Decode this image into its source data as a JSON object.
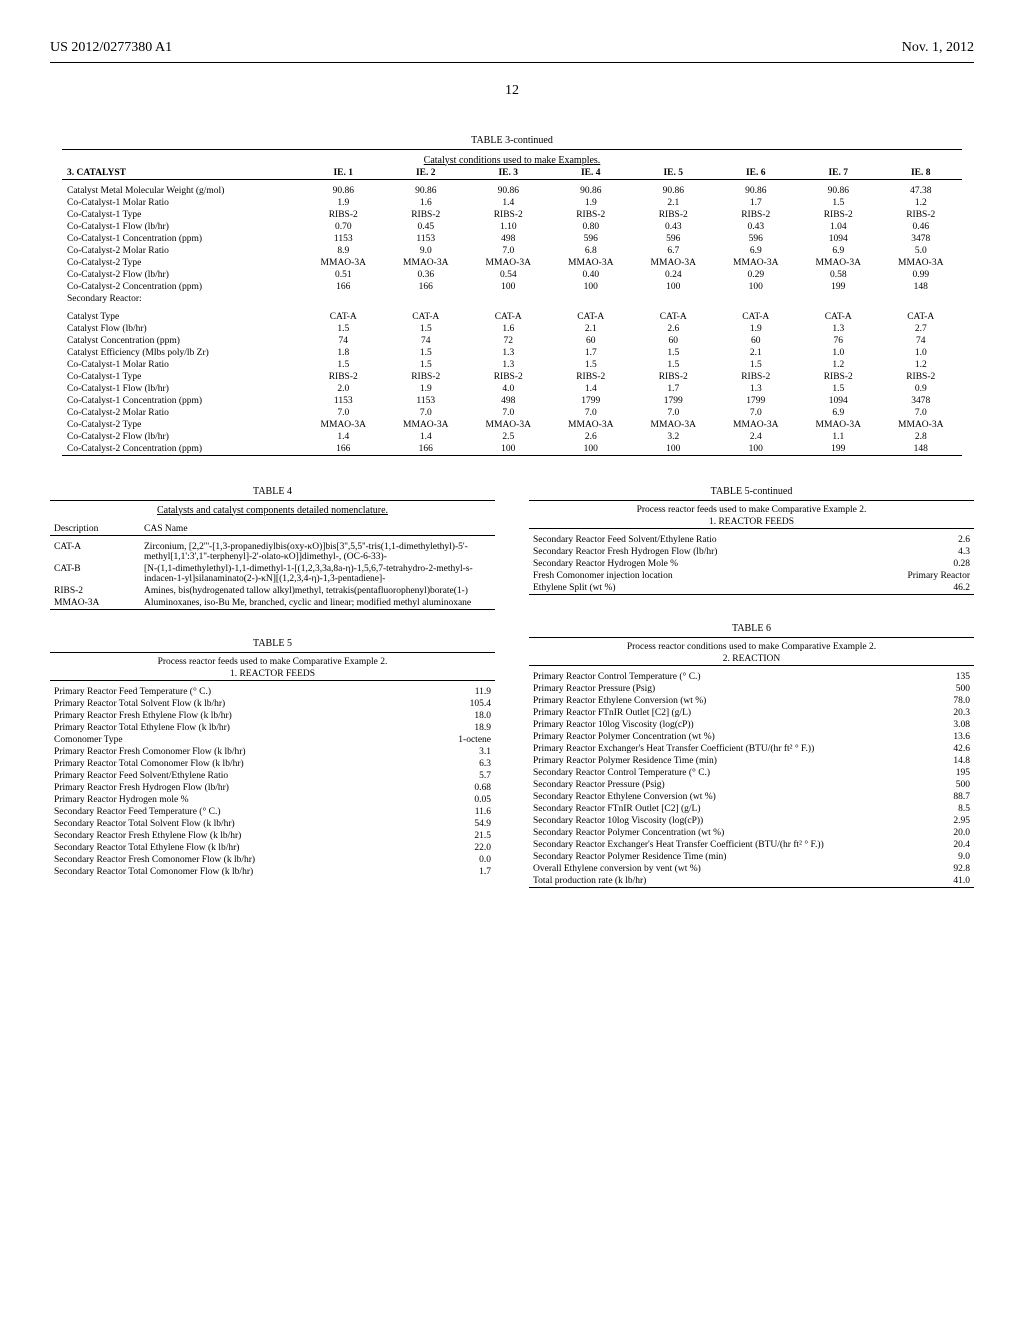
{
  "header": {
    "patent_id": "US 2012/0277380 A1",
    "date": "Nov. 1, 2012",
    "page_number": "12"
  },
  "table3": {
    "title": "TABLE 3-continued",
    "caption": "Catalyst conditions used to make Examples.",
    "section": "3. CATALYST",
    "cols": [
      "IE. 1",
      "IE. 2",
      "IE. 3",
      "IE. 4",
      "IE. 5",
      "IE. 6",
      "IE. 7",
      "IE. 8"
    ],
    "rows1": [
      {
        "l": "Catalyst Metal Molecular Weight (g/mol)",
        "v": [
          "90.86",
          "90.86",
          "90.86",
          "90.86",
          "90.86",
          "90.86",
          "90.86",
          "47.38"
        ]
      },
      {
        "l": "Co-Catalyst-1 Molar Ratio",
        "v": [
          "1.9",
          "1.6",
          "1.4",
          "1.9",
          "2.1",
          "1.7",
          "1.5",
          "1.2"
        ]
      },
      {
        "l": "Co-Catalyst-1 Type",
        "v": [
          "RIBS-2",
          "RIBS-2",
          "RIBS-2",
          "RIBS-2",
          "RIBS-2",
          "RIBS-2",
          "RIBS-2",
          "RIBS-2"
        ]
      },
      {
        "l": "Co-Catalyst-1 Flow (lb/hr)",
        "v": [
          "0.70",
          "0.45",
          "1.10",
          "0.80",
          "0.43",
          "0.43",
          "1.04",
          "0.46"
        ]
      },
      {
        "l": "Co-Catalyst-1 Concentration (ppm)",
        "v": [
          "1153",
          "1153",
          "498",
          "596",
          "596",
          "596",
          "1094",
          "3478"
        ]
      },
      {
        "l": "Co-Catalyst-2 Molar Ratio",
        "v": [
          "8.9",
          "9.0",
          "7.0",
          "6.8",
          "6.7",
          "6.9",
          "6.9",
          "5.0"
        ]
      },
      {
        "l": "Co-Catalyst-2 Type",
        "v": [
          "MMAO-3A",
          "MMAO-3A",
          "MMAO-3A",
          "MMAO-3A",
          "MMAO-3A",
          "MMAO-3A",
          "MMAO-3A",
          "MMAO-3A"
        ]
      },
      {
        "l": "Co-Catalyst-2 Flow (lb/hr)",
        "v": [
          "0.51",
          "0.36",
          "0.54",
          "0.40",
          "0.24",
          "0.29",
          "0.58",
          "0.99"
        ]
      },
      {
        "l": "Co-Catalyst-2 Concentration (ppm)",
        "v": [
          "166",
          "166",
          "100",
          "100",
          "100",
          "100",
          "199",
          "148"
        ]
      }
    ],
    "secondary_label": "Secondary Reactor:",
    "rows2": [
      {
        "l": "Catalyst Type",
        "v": [
          "CAT-A",
          "CAT-A",
          "CAT-A",
          "CAT-A",
          "CAT-A",
          "CAT-A",
          "CAT-A",
          "CAT-A"
        ]
      },
      {
        "l": "Catalyst Flow (lb/hr)",
        "v": [
          "1.5",
          "1.5",
          "1.6",
          "2.1",
          "2.6",
          "1.9",
          "1.3",
          "2.7"
        ]
      },
      {
        "l": "Catalyst Concentration (ppm)",
        "v": [
          "74",
          "74",
          "72",
          "60",
          "60",
          "60",
          "76",
          "74"
        ]
      },
      {
        "l": "Catalyst Efficiency (Mlbs poly/lb Zr)",
        "v": [
          "1.8",
          "1.5",
          "1.3",
          "1.7",
          "1.5",
          "2.1",
          "1.0",
          "1.0"
        ]
      },
      {
        "l": "Co-Catalyst-1 Molar Ratio",
        "v": [
          "1.5",
          "1.5",
          "1.3",
          "1.5",
          "1.5",
          "1.5",
          "1.2",
          "1.2"
        ]
      },
      {
        "l": "Co-Catalyst-1 Type",
        "v": [
          "RIBS-2",
          "RIBS-2",
          "RIBS-2",
          "RIBS-2",
          "RIBS-2",
          "RIBS-2",
          "RIBS-2",
          "RIBS-2"
        ]
      },
      {
        "l": "Co-Catalyst-1 Flow (lb/hr)",
        "v": [
          "2.0",
          "1.9",
          "4.0",
          "1.4",
          "1.7",
          "1.3",
          "1.5",
          "0.9"
        ]
      },
      {
        "l": "Co-Catalyst-1 Concentration (ppm)",
        "v": [
          "1153",
          "1153",
          "498",
          "1799",
          "1799",
          "1799",
          "1094",
          "3478"
        ]
      },
      {
        "l": "Co-Catalyst-2 Molar Ratio",
        "v": [
          "7.0",
          "7.0",
          "7.0",
          "7.0",
          "7.0",
          "7.0",
          "6.9",
          "7.0"
        ]
      },
      {
        "l": "Co-Catalyst-2 Type",
        "v": [
          "MMAO-3A",
          "MMAO-3A",
          "MMAO-3A",
          "MMAO-3A",
          "MMAO-3A",
          "MMAO-3A",
          "MMAO-3A",
          "MMAO-3A"
        ]
      },
      {
        "l": "Co-Catalyst-2 Flow (lb/hr)",
        "v": [
          "1.4",
          "1.4",
          "2.5",
          "2.6",
          "3.2",
          "2.4",
          "1.1",
          "2.8"
        ]
      },
      {
        "l": "Co-Catalyst-2 Concentration (ppm)",
        "v": [
          "166",
          "166",
          "100",
          "100",
          "100",
          "100",
          "199",
          "148"
        ]
      }
    ]
  },
  "table4": {
    "title": "TABLE 4",
    "caption": "Catalysts and catalyst components detailed nomenclature.",
    "cols": [
      "Description",
      "CAS Name"
    ],
    "rows": [
      {
        "d": "CAT-A",
        "n": "Zirconium, [2,2'''-[1,3-propanediylbis(oxy-κO)]bis[3'',5,5''-tris(1,1-dimethylethyl)-5'-methyl[1,1':3',1''-terphenyl]-2'-olato-κO]]dimethyl-, (OC-6-33)-"
      },
      {
        "d": "CAT-B",
        "n": "[N-(1,1-dimethylethyl)-1,1-dimethyl-1-[(1,2,3,3a,8a-η)-1,5,6,7-tetrahydro-2-methyl-s-indacen-1-yl]silanaminato(2-)-κN][(1,2,3,4-η)-1,3-pentadiene]-"
      },
      {
        "d": "RIBS-2",
        "n": "Amines, bis(hydrogenated tallow alkyl)methyl, tetrakis(pentafluorophenyl)borate(1-)"
      },
      {
        "d": "MMAO-3A",
        "n": "Aluminoxanes, iso-Bu Me, branched, cyclic and linear; modified methyl aluminoxane"
      }
    ]
  },
  "table5": {
    "title": "TABLE 5",
    "caption": "Process reactor feeds used to make Comparative Example 2.",
    "section": "1. REACTOR FEEDS",
    "rows": [
      {
        "l": "Primary Reactor Feed Temperature (° C.)",
        "v": "11.9"
      },
      {
        "l": "Primary Reactor Total Solvent Flow (k lb/hr)",
        "v": "105.4"
      },
      {
        "l": "Primary Reactor Fresh Ethylene Flow (k lb/hr)",
        "v": "18.0"
      },
      {
        "l": "Primary Reactor Total Ethylene Flow (k lb/hr)",
        "v": "18.9"
      },
      {
        "l": "Comonomer Type",
        "v": "1-octene"
      },
      {
        "l": "Primary Reactor Fresh Comonomer Flow (k lb/hr)",
        "v": "3.1"
      },
      {
        "l": "Primary Reactor Total Comonomer Flow (k lb/hr)",
        "v": "6.3"
      },
      {
        "l": "Primary Reactor Feed Solvent/Ethylene Ratio",
        "v": "5.7"
      },
      {
        "l": "Primary Reactor Fresh Hydrogen Flow (lb/hr)",
        "v": "0.68"
      },
      {
        "l": "Primary Reactor Hydrogen mole %",
        "v": "0.05"
      },
      {
        "l": "Secondary Reactor Feed Temperature (° C.)",
        "v": "11.6"
      },
      {
        "l": "Secondary Reactor Total Solvent Flow (k lb/hr)",
        "v": "54.9"
      },
      {
        "l": "Secondary Reactor Fresh Ethylene Flow (k lb/hr)",
        "v": "21.5"
      },
      {
        "l": "Secondary Reactor Total Ethylene Flow (k lb/hr)",
        "v": "22.0"
      },
      {
        "l": "Secondary Reactor Fresh Comonomer Flow (k lb/hr)",
        "v": "0.0"
      },
      {
        "l": "Secondary Reactor Total Comonomer Flow (k lb/hr)",
        "v": "1.7"
      }
    ]
  },
  "table5c": {
    "title": "TABLE 5-continued",
    "caption": "Process reactor feeds used to make Comparative Example 2.",
    "section": "1. REACTOR FEEDS",
    "rows": [
      {
        "l": "Secondary Reactor Feed Solvent/Ethylene Ratio",
        "v": "2.6"
      },
      {
        "l": "Secondary Reactor Fresh Hydrogen Flow (lb/hr)",
        "v": "4.3"
      },
      {
        "l": "Secondary Reactor Hydrogen Mole %",
        "v": "0.28"
      },
      {
        "l": "Fresh Comonomer injection location",
        "v": "Primary Reactor"
      },
      {
        "l": "Ethylene Split (wt %)",
        "v": "46.2"
      }
    ]
  },
  "table6": {
    "title": "TABLE 6",
    "caption": "Process reactor conditions used to make Comparative Example 2.",
    "section": "2. REACTION",
    "rows": [
      {
        "l": "Primary Reactor Control Temperature (° C.)",
        "v": "135"
      },
      {
        "l": "Primary Reactor Pressure (Psig)",
        "v": "500"
      },
      {
        "l": "Primary Reactor Ethylene Conversion (wt %)",
        "v": "78.0"
      },
      {
        "l": "Primary Reactor FTnIR Outlet [C2] (g/L)",
        "v": "20.3"
      },
      {
        "l": "Primary Reactor 10log Viscosity (log(cP))",
        "v": "3.08"
      },
      {
        "l": "Primary Reactor Polymer Concentration (wt %)",
        "v": "13.6"
      },
      {
        "l": "Primary Reactor Exchanger's Heat Transfer Coefficient (BTU/(hr ft² ° F.))",
        "v": "42.6"
      },
      {
        "l": "Primary Reactor Polymer Residence Time (min)",
        "v": "14.8"
      },
      {
        "l": "Secondary Reactor Control Temperature (° C.)",
        "v": "195"
      },
      {
        "l": "Secondary Reactor Pressure (Psig)",
        "v": "500"
      },
      {
        "l": "Secondary Reactor Ethylene Conversion (wt %)",
        "v": "88.7"
      },
      {
        "l": "Secondary Reactor FTnIR Outlet [C2] (g/L)",
        "v": "8.5"
      },
      {
        "l": "Secondary Reactor 10log Viscosity (log(cP))",
        "v": "2.95"
      },
      {
        "l": "Secondary Reactor Polymer Concentration (wt %)",
        "v": "20.0"
      },
      {
        "l": "Secondary Reactor Exchanger's Heat Transfer Coefficient (BTU/(hr ft² ° F.))",
        "v": "20.4"
      },
      {
        "l": "Secondary Reactor Polymer Residence Time (min)",
        "v": "9.0"
      },
      {
        "l": "Overall Ethylene conversion by vent (wt %)",
        "v": "92.8"
      },
      {
        "l": "Total production rate (k lb/hr)",
        "v": "41.0"
      }
    ]
  }
}
